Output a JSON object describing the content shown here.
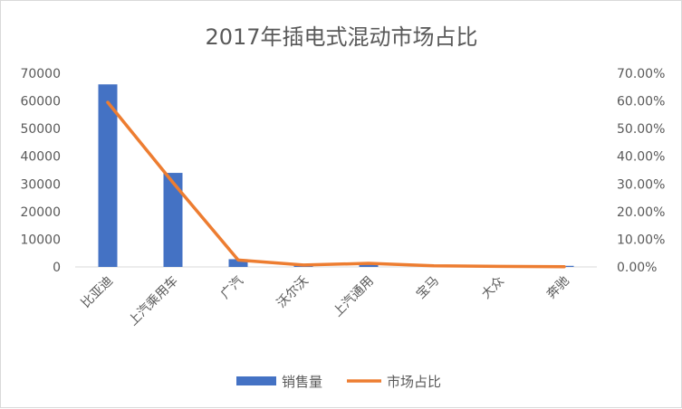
{
  "chart_data": {
    "type": "bar",
    "title": "2017年插电式混动市场占比",
    "categories": [
      "比亚迪",
      "上汽乘用车",
      "广汽",
      "沃尔沃",
      "上汽通用",
      "宝马",
      "大众",
      "奔驰"
    ],
    "series": [
      {
        "name": "销售量",
        "type": "bar",
        "axis": "left",
        "color": "#4472C4",
        "values": [
          66000,
          34000,
          2800,
          500,
          1200,
          200,
          100,
          400
        ]
      },
      {
        "name": "市场占比",
        "type": "line",
        "axis": "right",
        "color": "#ED7D31",
        "values": [
          0.595,
          0.305,
          0.025,
          0.007,
          0.013,
          0.004,
          0.002,
          0.001
        ]
      }
    ],
    "y_left": {
      "range": [
        0,
        70000
      ],
      "ticks": [
        "0",
        "10000",
        "20000",
        "30000",
        "40000",
        "50000",
        "60000",
        "70000"
      ]
    },
    "y_right": {
      "range": [
        0,
        0.7
      ],
      "ticks": [
        "0.00%",
        "10.00%",
        "20.00%",
        "30.00%",
        "40.00%",
        "50.00%",
        "60.00%",
        "70.00%"
      ]
    },
    "grid": false,
    "legend": "bottom"
  }
}
